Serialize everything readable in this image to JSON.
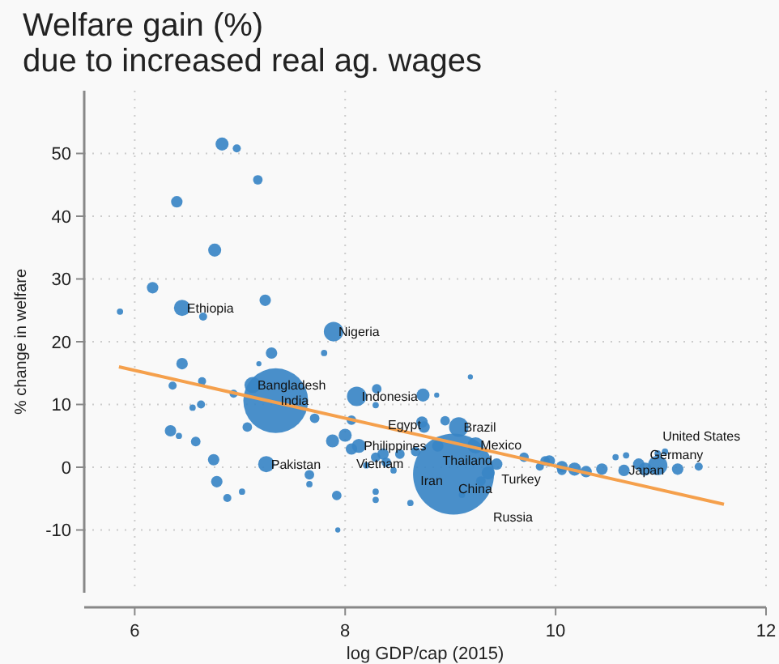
{
  "chart_data": {
    "type": "bubble",
    "title": "Welfare gain (%)\ndue to increased real ag. wages",
    "xlabel": "log GDP/cap (2015)",
    "ylabel": "% change in welfare",
    "xlim": [
      5.52,
      12
    ],
    "ylim": [
      -20,
      60
    ],
    "xticks": [
      6,
      8,
      10,
      12
    ],
    "yticks": [
      -10,
      0,
      10,
      20,
      30,
      40,
      50
    ],
    "grid": true,
    "series": [
      {
        "color": "#3a86c6",
        "x": [
          6.83,
          6.97,
          7.17,
          6.4,
          6.76,
          6.17,
          5.86,
          6.45,
          6.65,
          7.24,
          7.89,
          7.3,
          7.8,
          6.45,
          7.18,
          6.36,
          6.64,
          7.12,
          6.94,
          7.34,
          8.11,
          8.3,
          6.34,
          6.42,
          6.58,
          6.55,
          6.63,
          6.75,
          6.78,
          6.88,
          7.02,
          7.07,
          7.71,
          8.06,
          8.29,
          8.74,
          8.87,
          9.19,
          8.73,
          8.75,
          9.08,
          8.95,
          9.24,
          7.88,
          8,
          8.13,
          8.06,
          8.36,
          8.29,
          8.39,
          8.67,
          8.88,
          8.52,
          8.2,
          8.46,
          7.25,
          7.66,
          7.66,
          7.92,
          8.29,
          8.29,
          8.62,
          7.93,
          9.03,
          9.36,
          9.44,
          9.11,
          9.29,
          9.7,
          9.9,
          10.06,
          9.94,
          10.06,
          10.18,
          10.29,
          10.44,
          10.57,
          10.67,
          10.65,
          10.79,
          10.85,
          10.97,
          10.97,
          11.04,
          11.16,
          11.36,
          9.85
        ],
        "values": [
          51.5,
          50.8,
          45.8,
          42.3,
          34.6,
          28.6,
          24.8,
          25.4,
          24,
          26.6,
          21.6,
          18.2,
          18.2,
          16.5,
          16.5,
          13,
          13.7,
          13.1,
          11.7,
          10.6,
          11.3,
          12.5,
          5.8,
          5,
          4.1,
          9.5,
          10,
          1.2,
          -2.3,
          -4.9,
          -3.9,
          6.4,
          7.8,
          7.5,
          9.9,
          11.5,
          11.5,
          14.4,
          7.2,
          6.4,
          6.4,
          7.4,
          3.5,
          4.2,
          5.1,
          3.4,
          2.9,
          2.1,
          1.6,
          0.8,
          2.5,
          3.4,
          2.1,
          0.3,
          -0.5,
          0.5,
          -1.2,
          -2.7,
          -4.5,
          -3.9,
          -5.2,
          -5.7,
          -10,
          -1.1,
          -0.9,
          0.5,
          -4.4,
          -2.2,
          1.6,
          1,
          -0.5,
          1,
          0.1,
          -0.3,
          -0.7,
          -0.3,
          1.6,
          1.9,
          -0.5,
          0.5,
          -0.3,
          0.3,
          2.2,
          2.5,
          -0.3,
          0.1,
          0.1
        ],
        "sizes": [
          0.026,
          0.01,
          0.014,
          0.02,
          0.026,
          0.02,
          0.006,
          0.04,
          0.01,
          0.02,
          0.058,
          0.02,
          0.006,
          0.02,
          0.004,
          0.01,
          0.01,
          0.04,
          0.01,
          0.64,
          0.058,
          0.014,
          0.02,
          0.006,
          0.014,
          0.006,
          0.01,
          0.02,
          0.02,
          0.01,
          0.006,
          0.014,
          0.014,
          0.014,
          0.006,
          0.026,
          0.004,
          0.004,
          0.02,
          0.02,
          0.058,
          0.014,
          0.04,
          0.026,
          0.026,
          0.03,
          0.02,
          0.02,
          0.014,
          0.014,
          0.014,
          0.02,
          0.014,
          0.006,
          0.006,
          0.04,
          0.014,
          0.006,
          0.014,
          0.006,
          0.006,
          0.006,
          0.004,
          1,
          0.026,
          0.02,
          0.006,
          0.014,
          0.014,
          0.014,
          0.014,
          0.02,
          0.02,
          0.026,
          0.02,
          0.02,
          0.006,
          0.006,
          0.02,
          0.02,
          0.026,
          0.058,
          0.006,
          0.006,
          0.02,
          0.01,
          0.01
        ]
      },
      {
        "type": "line",
        "color": "#f5a04c",
        "x": [
          5.85,
          11.6
        ],
        "values": [
          16,
          -5.9
        ]
      }
    ],
    "annotations": [
      {
        "text": "Ethiopia",
        "x": 6.45,
        "y": 25.4
      },
      {
        "text": "Nigeria",
        "x": 7.89,
        "y": 21.6
      },
      {
        "text": "Bangladesh",
        "x": 7.12,
        "y": 13.1
      },
      {
        "text": "India",
        "x": 7.34,
        "y": 10.6
      },
      {
        "text": "Indonesia",
        "x": 8.11,
        "y": 11.3
      },
      {
        "text": "Brazil",
        "x": 9.08,
        "y": 6.4
      },
      {
        "text": "Philippines",
        "x": 8.13,
        "y": 3.4
      },
      {
        "text": "Mexico",
        "x": 9.24,
        "y": 3.5
      },
      {
        "text": "Vietnam",
        "x": 8.06,
        "y": 2.9
      },
      {
        "text": "Egypt",
        "x": 8.36,
        "y": 2.1
      },
      {
        "text": "Thailand",
        "x": 8.88,
        "y": 3.4
      },
      {
        "text": "Iran",
        "x": 8.67,
        "y": 2.5
      },
      {
        "text": "Pakistan",
        "x": 7.25,
        "y": 0.5
      },
      {
        "text": "Turkey",
        "x": 9.44,
        "y": 0.5
      },
      {
        "text": "China",
        "x": 9.03,
        "y": -1.1
      },
      {
        "text": "Russia",
        "x": 9.36,
        "y": -0.9
      },
      {
        "text": "Japan",
        "x": 10.65,
        "y": -0.5
      },
      {
        "text": "Germany",
        "x": 10.85,
        "y": -0.3
      },
      {
        "text": "United States",
        "x": 10.97,
        "y": 0.3
      }
    ]
  }
}
